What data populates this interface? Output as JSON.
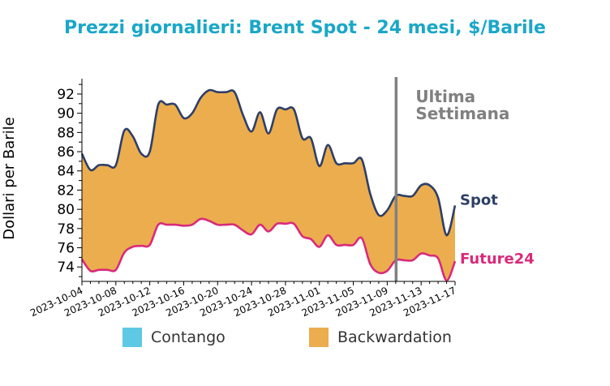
{
  "chart_data": {
    "type": "area",
    "title": "Prezzi giornalieri: Brent Spot - 24 mesi, $/Barile",
    "ylabel": "Dollari per Barile",
    "xlabel": "",
    "ylim": [
      72.5,
      93.6
    ],
    "yticks": [
      74,
      76,
      78,
      80,
      82,
      84,
      86,
      88,
      90,
      92
    ],
    "x_tick_labels": [
      "2023-10-04",
      "2023-10-08",
      "2023-10-12",
      "2023-10-16",
      "2023-10-20",
      "2023-10-24",
      "2023-10-28",
      "2023-11-01",
      "2023-11-05",
      "2023-11-09",
      "2023-11-13",
      "2023-11-17"
    ],
    "x": [
      "2023-10-04",
      "2023-10-05",
      "2023-10-06",
      "2023-10-07",
      "2023-10-08",
      "2023-10-09",
      "2023-10-10",
      "2023-10-11",
      "2023-10-12",
      "2023-10-13",
      "2023-10-14",
      "2023-10-15",
      "2023-10-16",
      "2023-10-17",
      "2023-10-18",
      "2023-10-19",
      "2023-10-20",
      "2023-10-21",
      "2023-10-22",
      "2023-10-23",
      "2023-10-24",
      "2023-10-25",
      "2023-10-26",
      "2023-10-27",
      "2023-10-28",
      "2023-10-29",
      "2023-10-30",
      "2023-10-31",
      "2023-11-01",
      "2023-11-02",
      "2023-11-03",
      "2023-11-04",
      "2023-11-05",
      "2023-11-06",
      "2023-11-07",
      "2023-11-08",
      "2023-11-09",
      "2023-11-10",
      "2023-11-11",
      "2023-11-12",
      "2023-11-13",
      "2023-11-14",
      "2023-11-15",
      "2023-11-16",
      "2023-11-17"
    ],
    "series": [
      {
        "name": "Spot",
        "color": "#2e3f66",
        "values": [
          85.8,
          84.1,
          84.6,
          84.6,
          84.6,
          88.2,
          87.6,
          85.8,
          86.0,
          90.9,
          90.9,
          90.9,
          89.5,
          90.0,
          91.6,
          92.4,
          92.2,
          92.2,
          92.2,
          89.8,
          88.1,
          90.1,
          87.9,
          90.4,
          90.4,
          90.4,
          87.4,
          87.4,
          84.5,
          86.7,
          84.8,
          84.8,
          84.8,
          85.2,
          81.6,
          79.4,
          79.9,
          81.4,
          81.4,
          81.4,
          82.5,
          82.5,
          81.2,
          77.3,
          80.4
        ]
      },
      {
        "name": "Future24",
        "color": "#d92a7a",
        "values": [
          74.8,
          73.6,
          73.7,
          73.7,
          73.7,
          75.5,
          76.1,
          76.2,
          76.3,
          78.4,
          78.4,
          78.4,
          78.3,
          78.4,
          79.0,
          78.8,
          78.4,
          78.4,
          78.4,
          77.8,
          77.4,
          78.4,
          77.7,
          78.5,
          78.5,
          78.5,
          77.2,
          76.9,
          76.1,
          77.3,
          76.3,
          76.3,
          76.3,
          77.0,
          74.3,
          73.4,
          73.6,
          74.7,
          74.7,
          74.7,
          75.4,
          75.2,
          74.9,
          72.6,
          74.6
        ]
      }
    ],
    "fill_colors": {
      "backwardation": "#ebad4e",
      "contango": "#5ec8e5"
    },
    "legend": [
      "Contango",
      "Backwardation"
    ],
    "legend_placement": "bottom",
    "vline": {
      "x": "2023-11-10",
      "label": "Ultima\nSettimana",
      "color": "#808080"
    },
    "grid": false
  },
  "title_color": "#1aa7c8"
}
